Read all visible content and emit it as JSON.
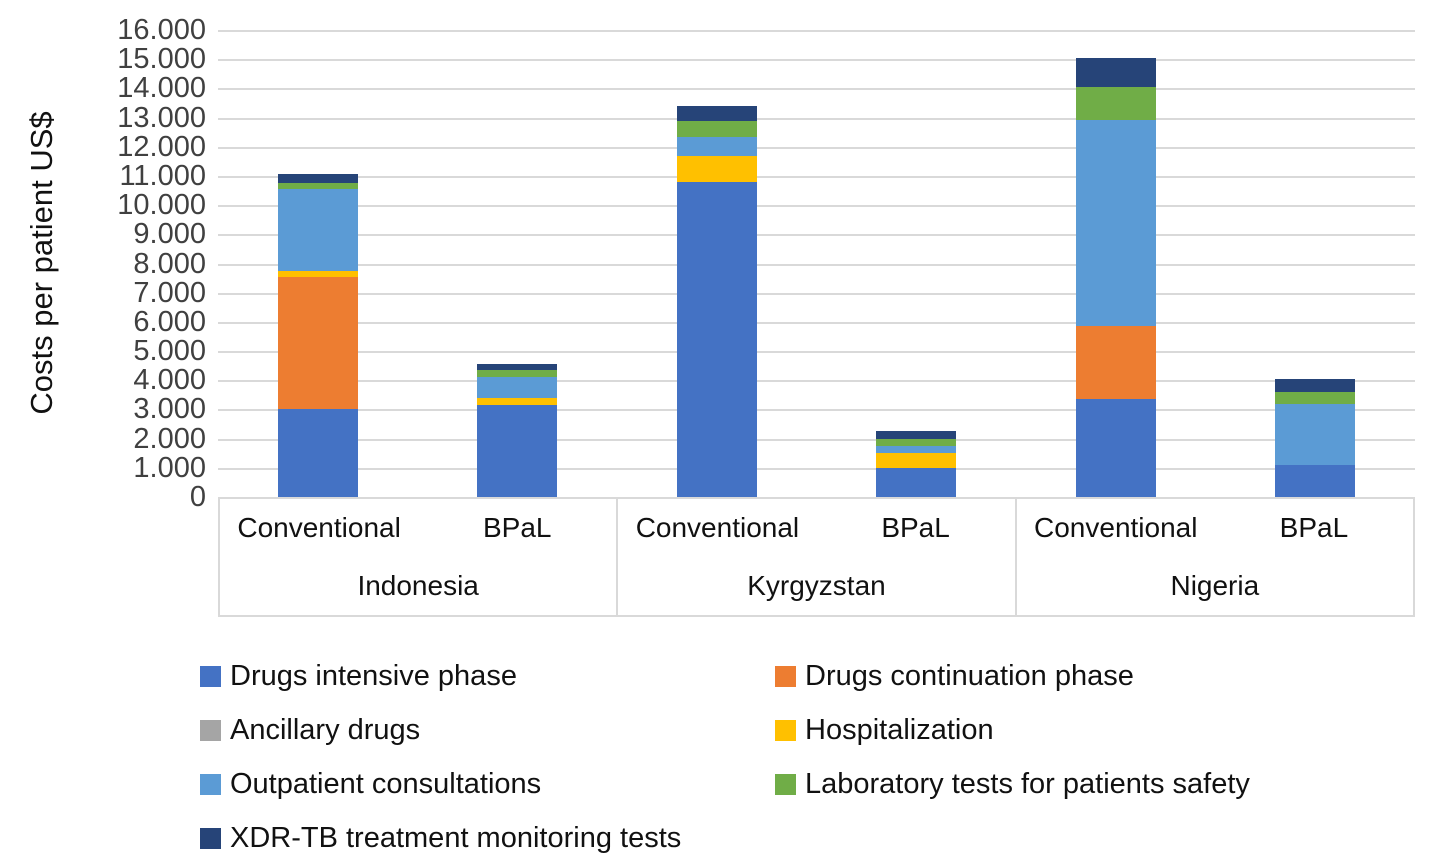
{
  "chart_data": {
    "type": "bar",
    "stacked": true,
    "title": "",
    "ylabel": "Costs per patient US$",
    "xlabel": "",
    "ylim": [
      0,
      16000
    ],
    "ytick_step": 1000,
    "ytick_labels": [
      "0",
      "1.000",
      "2.000",
      "3.000",
      "4.000",
      "5.000",
      "6.000",
      "7.000",
      "8.000",
      "9.000",
      "10.000",
      "11.000",
      "12.000",
      "13.000",
      "14.000",
      "15.000",
      "16.000"
    ],
    "grid": "horizontal",
    "legend_position": "bottom",
    "group_labels": [
      "Indonesia",
      "Kyrgyzstan",
      "Nigeria"
    ],
    "bar_labels": [
      "Conventional",
      "BPaL",
      "Conventional",
      "BPaL",
      "Conventional",
      "BPaL"
    ],
    "series": [
      {
        "name": "Drugs intensive phase",
        "color": "#4472C4",
        "values": [
          3000,
          3150,
          10800,
          1000,
          3350,
          1100
        ]
      },
      {
        "name": "Drugs continuation phase",
        "color": "#ED7D31",
        "values": [
          4550,
          0,
          0,
          0,
          2500,
          0
        ]
      },
      {
        "name": "Ancillary drugs",
        "color": "#A5A5A5",
        "values": [
          0,
          0,
          0,
          0,
          0,
          0
        ]
      },
      {
        "name": "Hospitalization",
        "color": "#FFC000",
        "values": [
          200,
          250,
          900,
          500,
          0,
          0
        ]
      },
      {
        "name": "Outpatient consultations",
        "color": "#5B9BD5",
        "values": [
          2800,
          700,
          650,
          250,
          7050,
          2100
        ]
      },
      {
        "name": "Laboratory tests for patients safety",
        "color": "#70AD47",
        "values": [
          200,
          250,
          550,
          250,
          1150,
          400
        ]
      },
      {
        "name": "XDR-TB treatment monitoring tests",
        "color": "#264478",
        "values": [
          300,
          200,
          500,
          250,
          1000,
          450
        ]
      }
    ],
    "bar_totals": [
      11050,
      4550,
      13400,
      2250,
      15050,
      4050
    ]
  },
  "colors": {
    "gridline": "#D9D9D9",
    "axis_border": "#D9D9D9",
    "tick_text": "#404040",
    "label_text": "#111111"
  }
}
